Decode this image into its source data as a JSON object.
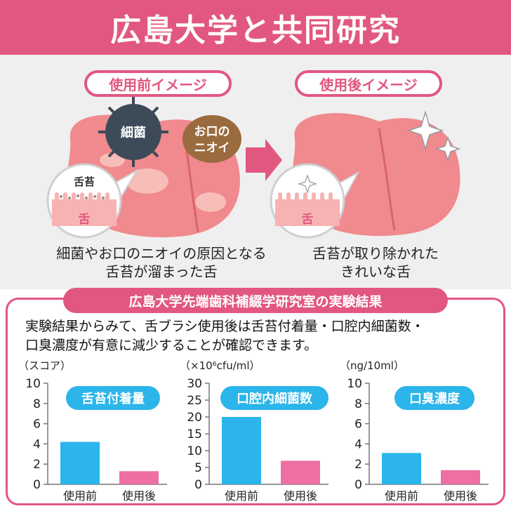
{
  "banner": {
    "title": "広島大学と共同研究"
  },
  "illustration": {
    "before_label": "使用前イメージ",
    "after_label": "使用後イメージ",
    "bacteria_label": "細菌",
    "odor_label_line1": "お口の",
    "odor_label_line2": "ニオイ",
    "coating_label": "舌苔",
    "tongue_label_before": "舌",
    "tongue_label_after": "舌",
    "before_caption_line1": "細菌やお口のニオイの原因となる",
    "before_caption_line2": "舌苔が溜まった舌",
    "after_caption_line1": "舌苔が取り除かれた",
    "after_caption_line2": "きれいな舌"
  },
  "results": {
    "title": "広島大学先端歯科補綴学研究室の実験結果",
    "summary_line1": "実験結果からみて、舌ブラシ使用後は舌苔付着量・口腔内細菌数・",
    "summary_line2": "口臭濃度が有意に減少することが確認できます。"
  },
  "colors": {
    "accent": "#e25780",
    "before_bar": "#2bb5ea",
    "after_bar": "#ee6fa3",
    "illustration_bg": "#efefef"
  },
  "chart_data": [
    {
      "type": "bar",
      "title": "舌苔付着量",
      "ylabel": "（スコア）",
      "categories": [
        "使用前",
        "使用後"
      ],
      "values": [
        4.2,
        1.3
      ],
      "ylim": [
        0,
        10
      ],
      "ticks": [
        "0",
        "2",
        "4",
        "6",
        "8",
        "10"
      ],
      "grid": false
    },
    {
      "type": "bar",
      "title": "口腔内細菌数",
      "ylabel": "（×10⁶cfu/ml）",
      "categories": [
        "使用前",
        "使用後"
      ],
      "values": [
        20,
        7
      ],
      "ylim": [
        0,
        30
      ],
      "ticks": [
        "0",
        "5",
        "10",
        "15",
        "20",
        "25",
        "30"
      ],
      "grid": false
    },
    {
      "type": "bar",
      "title": "口臭濃度",
      "ylabel": "（ng/10ml）",
      "categories": [
        "使用前",
        "使用後"
      ],
      "values": [
        3.1,
        1.4
      ],
      "ylim": [
        0,
        10
      ],
      "ticks": [
        "0",
        "2",
        "4",
        "6",
        "8",
        "10"
      ],
      "grid": false
    }
  ]
}
